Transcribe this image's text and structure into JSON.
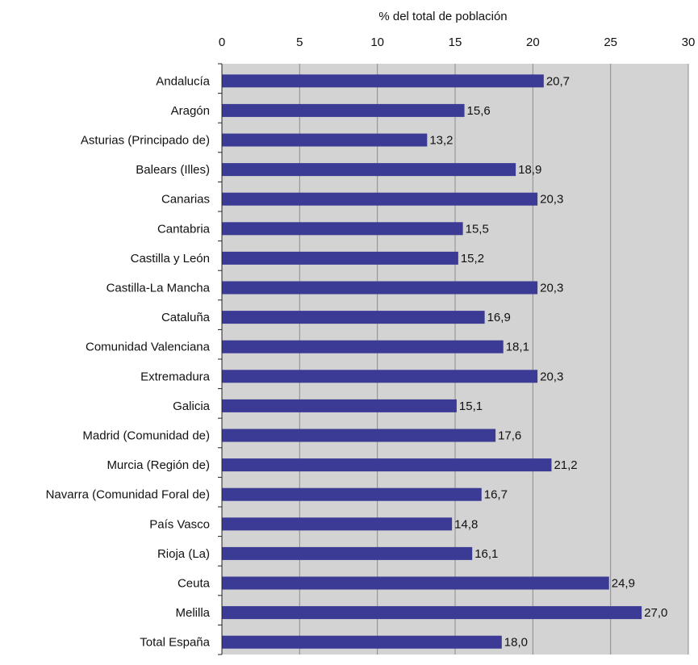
{
  "chart_data": {
    "type": "bar",
    "orientation": "horizontal",
    "xlabel": "% del total de población",
    "xlim": [
      0,
      30
    ],
    "xticks": [
      0,
      5,
      10,
      15,
      20,
      25,
      30
    ],
    "x_axis_position": "top",
    "grid": true,
    "plot_background": "#d3d3d3",
    "grid_color": "#8c8c8c",
    "bar_color": "#3b3b96",
    "categories": [
      "Andalucía",
      "Aragón",
      "Asturias (Principado de)",
      "Balears (Illes)",
      "Canarias",
      "Cantabria",
      "Castilla y León",
      "Castilla-La Mancha",
      "Cataluña",
      "Comunidad Valenciana",
      "Extremadura",
      "Galicia",
      "Madrid (Comunidad de)",
      "Murcia (Región de)",
      "Navarra (Comunidad Foral de)",
      "País Vasco",
      "Rioja (La)",
      "Ceuta",
      "Melilla",
      "Total España"
    ],
    "values": [
      20.7,
      15.6,
      13.2,
      18.9,
      20.3,
      15.5,
      15.2,
      20.3,
      16.9,
      18.1,
      20.3,
      15.1,
      17.6,
      21.2,
      16.7,
      14.8,
      16.1,
      24.9,
      27.0,
      18.0
    ],
    "value_labels": [
      "20,7",
      "15,6",
      "13,2",
      "18,9",
      "20,3",
      "15,5",
      "15,2",
      "20,3",
      "16,9",
      "18,1",
      "20,3",
      "15,1",
      "17,6",
      "21,2",
      "16,7",
      "14,8",
      "16,1",
      "24,9",
      "27,0",
      "18,0"
    ]
  }
}
